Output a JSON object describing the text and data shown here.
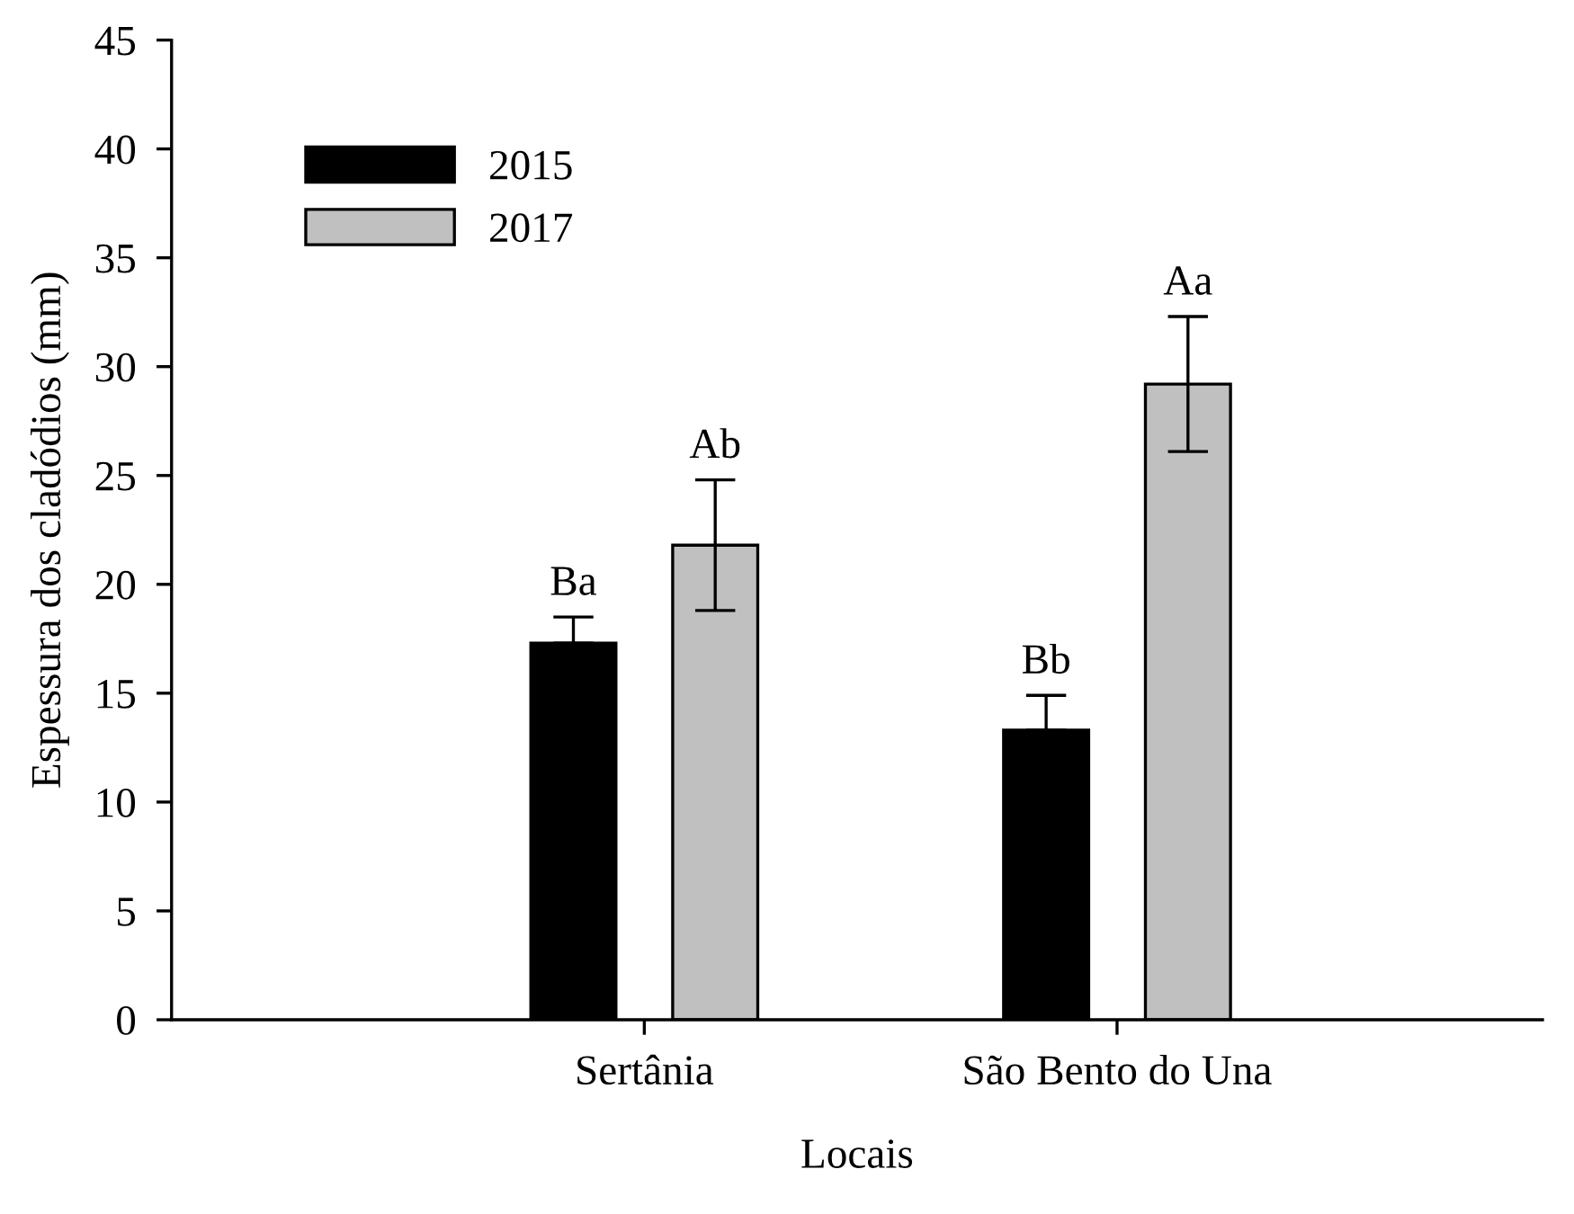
{
  "chart_data": {
    "type": "bar",
    "xlabel": "Locais",
    "ylabel": "Espessura dos cladódios (mm)",
    "categories": [
      "Sertânia",
      "São Bento do Una"
    ],
    "series": [
      {
        "name": "2015",
        "color": "#000000",
        "values": [
          17.3,
          13.3
        ],
        "errors": [
          1.2,
          1.6
        ],
        "value_labels": [
          "Ba",
          "Bb"
        ]
      },
      {
        "name": "2017",
        "color": "#c0c0c0",
        "values": [
          21.8,
          29.2
        ],
        "errors": [
          3.0,
          3.1
        ],
        "value_labels": [
          "Ab",
          "Aa"
        ]
      }
    ],
    "ylim": [
      0,
      45
    ],
    "yticks": [
      0,
      5,
      10,
      15,
      20,
      25,
      30,
      35,
      40,
      45
    ],
    "grid": false,
    "legend": "top left"
  }
}
